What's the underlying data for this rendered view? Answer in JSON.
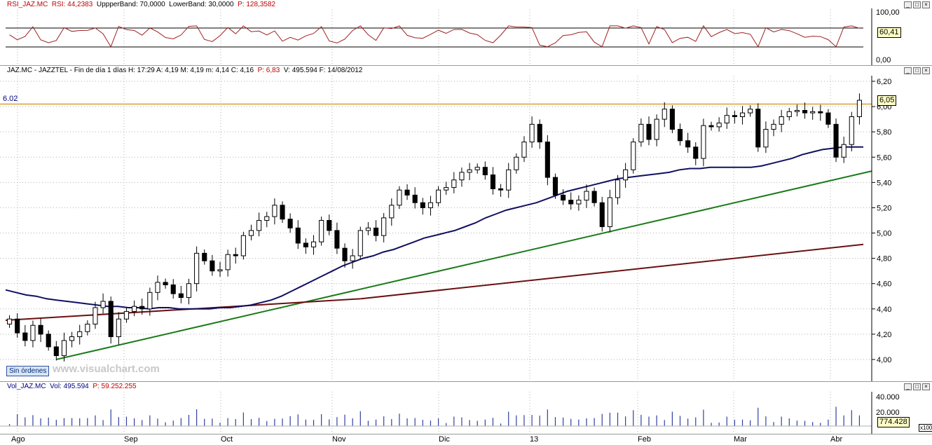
{
  "rsi_panel": {
    "header": [
      {
        "text": "RSI_JAZ.MC",
        "color": "#c00000"
      },
      {
        "text": "RSI: 44,2383",
        "color": "#c00000"
      },
      {
        "text": "UppperBand: 70,0000",
        "color": "#000000"
      },
      {
        "text": "LowerBand: 30,0000",
        "color": "#000000"
      },
      {
        "text": "P: 128,3582",
        "color": "#c00000"
      }
    ],
    "y_ticks": [
      "100,00",
      "0,00"
    ],
    "value_box": "60,41",
    "upper_band": 70,
    "lower_band": 30,
    "line_color": "#a02020"
  },
  "price_panel": {
    "header": "JAZ.MC - JAZZTEL - Fin de día 1 días  H: 17:29  A: 4,19  M: 4,19  m: 4,14  C: 4,16",
    "header_p": "P: 6,83",
    "header_tail": "V: 495.594  F: 14/08/2012",
    "y_ticks": [
      "6,20",
      "6,00",
      "5,80",
      "5,60",
      "5,40",
      "5,20",
      "5,00",
      "4,80",
      "4,60",
      "4,40",
      "4,20",
      "4,00"
    ],
    "resistance_label": "6.02",
    "resistance_color": "#d9a030",
    "value_box": "6,05",
    "watermark": "www.visualchart.com",
    "orders_button": "Sin órdenes"
  },
  "volume_panel": {
    "header": [
      {
        "text": "Vol_JAZ.MC",
        "color": "#000080"
      },
      {
        "text": "Vol: 495.594",
        "color": "#000080"
      },
      {
        "text": "P: 59.252.255",
        "color": "#c00000"
      }
    ],
    "y_ticks": [
      "40.000",
      "20.000"
    ],
    "value_box": "774.428",
    "multiplier": "x100"
  },
  "x_axis": {
    "labels": [
      "Ago",
      "Sep",
      "Oct",
      "Nov",
      "Dic",
      "13",
      "Feb",
      "Mar",
      "Abr"
    ]
  },
  "chart_data": {
    "type": "candlestick",
    "y_range": [
      3.9,
      6.2
    ],
    "resistance": 6.02,
    "x_labels": [
      "Ago",
      "Sep",
      "Oct",
      "Nov",
      "Dic",
      "13",
      "Feb",
      "Mar",
      "Abr"
    ],
    "closes": [
      4.32,
      4.21,
      4.15,
      4.27,
      4.2,
      4.1,
      4.03,
      4.15,
      4.18,
      4.22,
      4.28,
      4.41,
      4.46,
      4.18,
      4.32,
      4.38,
      4.42,
      4.4,
      4.53,
      4.61,
      4.59,
      4.52,
      4.49,
      4.6,
      4.84,
      4.78,
      4.7,
      4.71,
      4.83,
      4.82,
      4.98,
      5.02,
      5.1,
      5.13,
      5.22,
      5.11,
      5.04,
      4.92,
      4.89,
      4.93,
      5.1,
      5.02,
      4.88,
      4.78,
      4.82,
      5.02,
      5.04,
      4.98,
      5.12,
      5.22,
      5.34,
      5.3,
      5.24,
      5.2,
      5.24,
      5.34,
      5.36,
      5.42,
      5.48,
      5.5,
      5.52,
      5.46,
      5.35,
      5.34,
      5.5,
      5.6,
      5.72,
      5.86,
      5.72,
      5.44,
      5.3,
      5.26,
      5.23,
      5.26,
      5.33,
      5.24,
      5.05,
      5.28,
      5.42,
      5.5,
      5.72,
      5.86,
      5.74,
      5.9,
      5.98,
      5.82,
      5.73,
      5.68,
      5.59,
      5.85,
      5.84,
      5.87,
      5.93,
      5.92,
      5.95,
      5.98,
      5.68,
      5.82,
      5.86,
      5.92,
      5.96,
      5.97,
      5.95,
      5.96,
      5.95,
      5.86,
      5.6,
      5.7,
      5.92,
      6.05
    ],
    "sma_fast": [
      4.55,
      4.53,
      4.51,
      4.5,
      4.48,
      4.47,
      4.46,
      4.45,
      4.44,
      4.43,
      4.42,
      4.42,
      4.41,
      4.41,
      4.4,
      4.41,
      4.41,
      4.4,
      4.4,
      4.4,
      4.4,
      4.41,
      4.41,
      4.42,
      4.43,
      4.45,
      4.47,
      4.5,
      4.54,
      4.58,
      4.62,
      4.66,
      4.7,
      4.74,
      4.77,
      4.8,
      4.82,
      4.85,
      4.87,
      4.9,
      4.93,
      4.96,
      4.98,
      5.0,
      5.02,
      5.05,
      5.08,
      5.12,
      5.15,
      5.18,
      5.2,
      5.22,
      5.24,
      5.27,
      5.3,
      5.33,
      5.35,
      5.37,
      5.39,
      5.41,
      5.43,
      5.44,
      5.45,
      5.46,
      5.47,
      5.48,
      5.5,
      5.51,
      5.51,
      5.52,
      5.52,
      5.52,
      5.52,
      5.52,
      5.53,
      5.55,
      5.57,
      5.59,
      5.62,
      5.64,
      5.66,
      5.67,
      5.68,
      5.68,
      5.68
    ]
  }
}
